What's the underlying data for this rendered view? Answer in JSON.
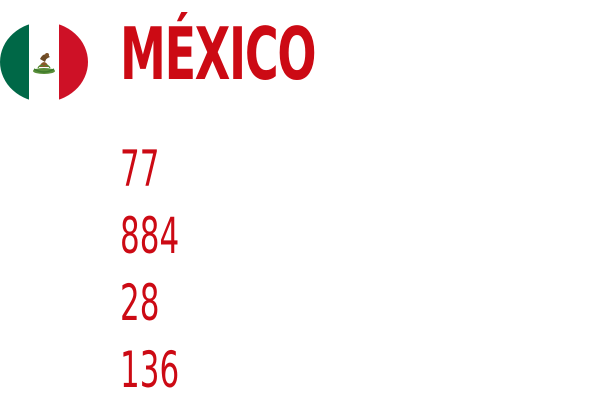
{
  "country": {
    "name": "MÉXICO",
    "flag_icon": "mexico-flag-icon"
  },
  "stats": [
    "77",
    "884",
    "28",
    "136"
  ],
  "colors": {
    "accent": "#cc0a14",
    "flag_green": "#006847",
    "flag_white": "#ffffff",
    "flag_red": "#ce1126"
  }
}
